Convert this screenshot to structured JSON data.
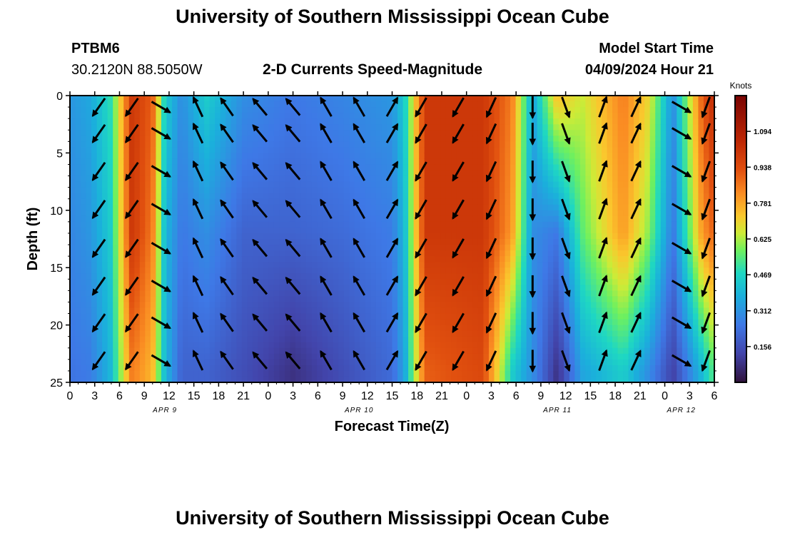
{
  "header": {
    "title": "University of Southern Mississippi Ocean Cube",
    "station": "PTBM6",
    "coords": "30.2120N  88.5050W",
    "subtitle": "2-D Currents Speed-Magnitude",
    "model_label": "Model Start Time",
    "model_time": "04/09/2024 Hour 21"
  },
  "footer": {
    "title": "University of Southern Mississippi Ocean Cube"
  },
  "chart_data": {
    "type": "heatmap",
    "title": "2-D Currents Speed-Magnitude",
    "xlabel": "Forecast Time(Z)",
    "ylabel": "Depth (ft)",
    "ylim": [
      0,
      25
    ],
    "y_ticks": [
      0,
      5,
      10,
      15,
      20,
      25
    ],
    "x_range_hours": [
      0,
      78
    ],
    "x_tick_labels": [
      "0",
      "3",
      "6",
      "9",
      "12",
      "15",
      "18",
      "21",
      "0",
      "3",
      "6",
      "9",
      "12",
      "15",
      "18",
      "21",
      "0",
      "3",
      "6",
      "9",
      "12",
      "15",
      "18",
      "21",
      "0",
      "3",
      "6"
    ],
    "date_labels": [
      {
        "label": "APR 9",
        "hour": 11.5
      },
      {
        "label": "APR 10",
        "hour": 35
      },
      {
        "label": "APR 11",
        "hour": 59
      },
      {
        "label": "APR 12",
        "hour": 74
      }
    ],
    "colorbar": {
      "units": "Knots",
      "ticks": [
        "1.094",
        "0.938",
        "0.781",
        "0.625",
        "0.469",
        "0.312",
        "0.156"
      ],
      "tick_values": [
        1.094,
        0.938,
        0.781,
        0.625,
        0.469,
        0.312,
        0.156
      ],
      "range": [
        0,
        1.25
      ]
    },
    "speed_profile_by_hour": [
      {
        "hour": 0,
        "speed": [
          0.32,
          0.28,
          0.24
        ]
      },
      {
        "hour": 2.5,
        "speed": [
          0.36,
          0.32,
          0.26
        ]
      },
      {
        "hour": 5,
        "speed": [
          0.5,
          0.45,
          0.4
        ]
      },
      {
        "hour": 7.5,
        "speed": [
          1.0,
          1.0,
          0.85
        ]
      },
      {
        "hour": 10,
        "speed": [
          0.9,
          0.85,
          0.75
        ]
      },
      {
        "hour": 11.5,
        "speed": [
          0.45,
          0.4,
          0.4
        ]
      },
      {
        "hour": 13.5,
        "speed": [
          0.3,
          0.25,
          0.2
        ]
      },
      {
        "hour": 16.5,
        "speed": [
          0.45,
          0.3,
          0.2
        ]
      },
      {
        "hour": 21,
        "speed": [
          0.3,
          0.2,
          0.15
        ]
      },
      {
        "hour": 27,
        "speed": [
          0.25,
          0.2,
          0.08
        ]
      },
      {
        "hour": 33,
        "speed": [
          0.28,
          0.22,
          0.15
        ]
      },
      {
        "hour": 39,
        "speed": [
          0.32,
          0.26,
          0.22
        ]
      },
      {
        "hour": 40.5,
        "speed": [
          0.45,
          0.4,
          0.35
        ]
      },
      {
        "hour": 43,
        "speed": [
          1.0,
          1.0,
          0.9
        ]
      },
      {
        "hour": 50,
        "speed": [
          1.0,
          1.0,
          0.95
        ]
      },
      {
        "hour": 53.5,
        "speed": [
          0.85,
          0.8,
          0.45
        ]
      },
      {
        "hour": 56,
        "speed": [
          0.35,
          0.3,
          0.3
        ]
      },
      {
        "hour": 59,
        "speed": [
          0.75,
          0.25,
          0.08
        ]
      },
      {
        "hour": 62,
        "speed": [
          0.65,
          0.55,
          0.35
        ]
      },
      {
        "hour": 67,
        "speed": [
          0.85,
          0.8,
          0.45
        ]
      },
      {
        "hour": 70,
        "speed": [
          0.7,
          0.6,
          0.3
        ]
      },
      {
        "hour": 73,
        "speed": [
          0.3,
          0.25,
          0.12
        ]
      },
      {
        "hour": 76.5,
        "speed": [
          0.9,
          0.8,
          0.4
        ]
      },
      {
        "hour": 78,
        "speed": [
          1.05,
          0.9,
          0.55
        ]
      }
    ],
    "speed_profile_depths_ft": [
      0,
      12,
      24
    ],
    "vector_columns": [
      {
        "hour": 3.5,
        "direction_deg": 215
      },
      {
        "hour": 7.5,
        "direction_deg": 215
      },
      {
        "hour": 11,
        "direction_deg": 120
      },
      {
        "hour": 15.5,
        "direction_deg": 335
      },
      {
        "hour": 19,
        "direction_deg": 325
      },
      {
        "hour": 23,
        "direction_deg": 320
      },
      {
        "hour": 27,
        "direction_deg": 320
      },
      {
        "hour": 31,
        "direction_deg": 330
      },
      {
        "hour": 35,
        "direction_deg": 330
      },
      {
        "hour": 39,
        "direction_deg": 30
      },
      {
        "hour": 42.5,
        "direction_deg": 210
      },
      {
        "hour": 47,
        "direction_deg": 210
      },
      {
        "hour": 51,
        "direction_deg": 205
      },
      {
        "hour": 56,
        "direction_deg": 180
      },
      {
        "hour": 60,
        "direction_deg": 160
      },
      {
        "hour": 64.5,
        "direction_deg": 20
      },
      {
        "hour": 68.5,
        "direction_deg": 25
      },
      {
        "hour": 74,
        "direction_deg": 120
      },
      {
        "hour": 77,
        "direction_deg": 200
      }
    ],
    "vector_depths_ft": [
      1,
      3.3,
      6.6,
      9.9,
      13.3,
      16.6,
      19.8,
      23.1
    ]
  }
}
